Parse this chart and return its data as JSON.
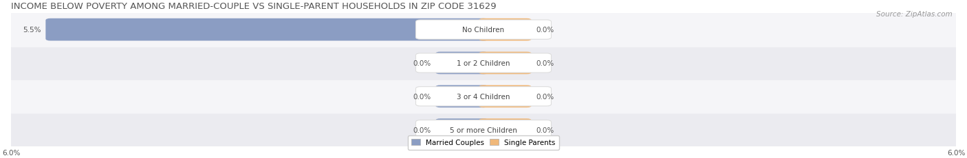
{
  "title": "INCOME BELOW POVERTY AMONG MARRIED-COUPLE VS SINGLE-PARENT HOUSEHOLDS IN ZIP CODE 31629",
  "source": "Source: ZipAtlas.com",
  "categories": [
    "No Children",
    "1 or 2 Children",
    "3 or 4 Children",
    "5 or more Children"
  ],
  "married_values": [
    5.5,
    0.0,
    0.0,
    0.0
  ],
  "single_values": [
    0.0,
    0.0,
    0.0,
    0.0
  ],
  "xlim": 6.0,
  "married_color": "#8b9dc3",
  "single_color": "#f0b87a",
  "married_label": "Married Couples",
  "single_label": "Single Parents",
  "row_bg_colors": [
    "#ebebf0",
    "#f5f5f8"
  ],
  "title_color": "#555555",
  "title_fontsize": 9.5,
  "source_fontsize": 7.5,
  "label_fontsize": 7.5,
  "category_fontsize": 7.5,
  "value_fontsize": 7.5,
  "min_bar_width": 0.55
}
